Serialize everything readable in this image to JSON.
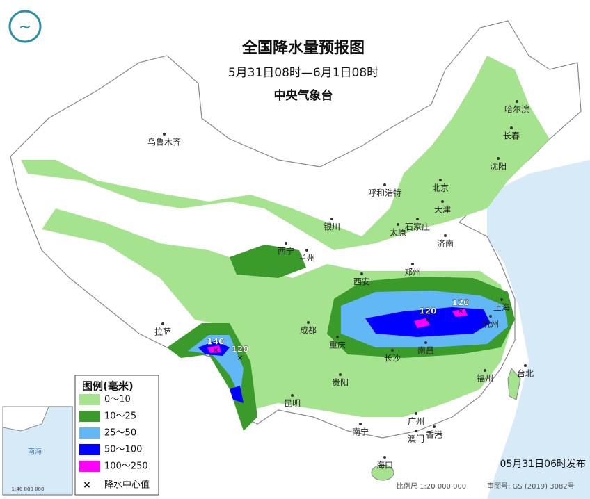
{
  "header": {
    "title": "全国降水量预报图",
    "period": "5月31日08时—6月1日08时",
    "agency": "中央气象台"
  },
  "legend": {
    "title": "图例(毫米)",
    "items": [
      {
        "label": "0～10",
        "color": "#a6e38f"
      },
      {
        "label": "10～25",
        "color": "#3a9a2a"
      },
      {
        "label": "25～50",
        "color": "#61b8f5"
      },
      {
        "label": "50～100",
        "color": "#0000ff"
      },
      {
        "label": "100～250",
        "color": "#ff00ff"
      }
    ],
    "center_label": "降水中心值"
  },
  "cities": [
    "乌鲁木齐",
    "呼和浩特",
    "哈尔滨",
    "长春",
    "沈阳",
    "北京",
    "天津",
    "石家庄",
    "太原",
    "济南",
    "银川",
    "西宁",
    "兰州",
    "西安",
    "郑州",
    "上海",
    "杭州",
    "拉萨",
    "成都",
    "重庆",
    "长沙",
    "南昌",
    "贵阳",
    "昆明",
    "福州",
    "台北",
    "南宁",
    "广州",
    "澳门",
    "香港",
    "海口"
  ],
  "max_values": [
    140,
    120,
    120,
    120
  ],
  "footer": {
    "release": "05月31日06时发布",
    "scale": "比例尺 1:20 000 000",
    "review": "审图号: GS (2019) 3082号"
  },
  "inset": {
    "sea": "南海",
    "scale": "1:40 000 000"
  }
}
